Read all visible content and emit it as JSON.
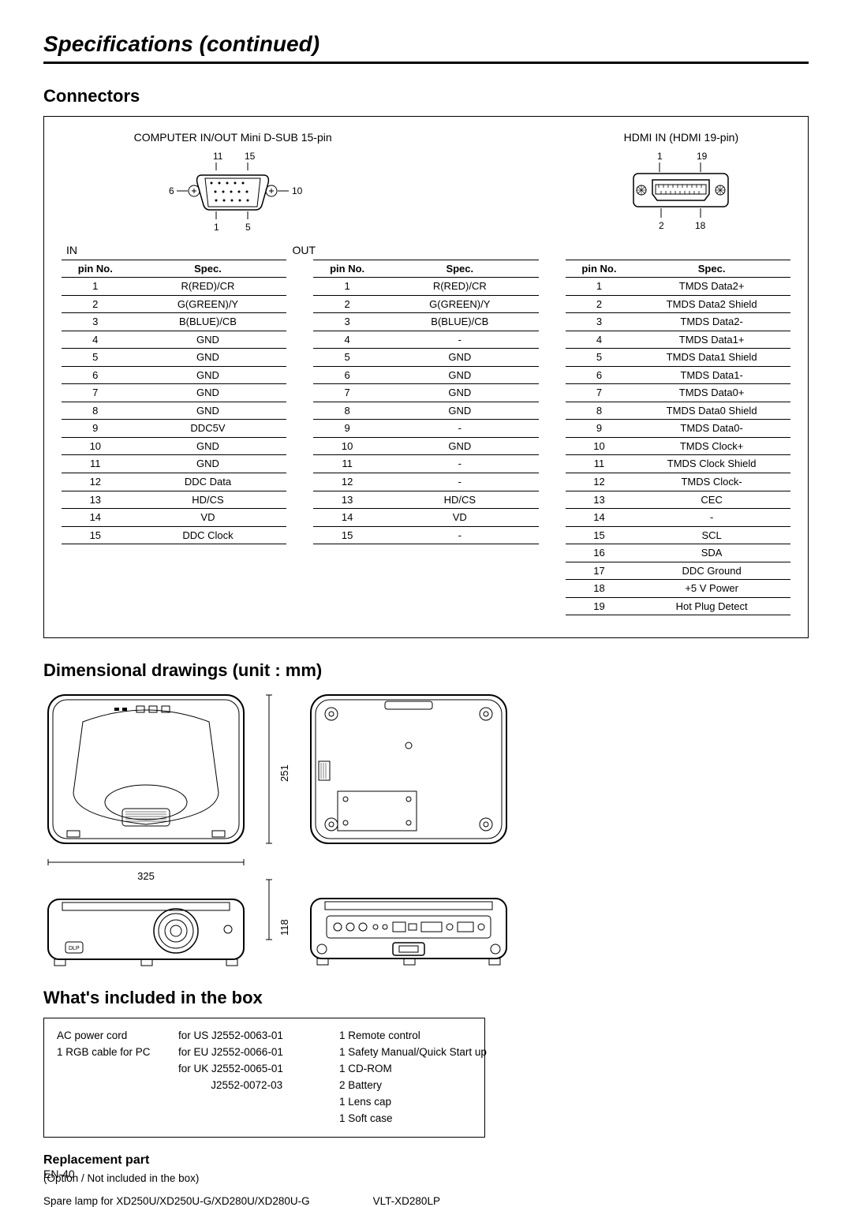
{
  "page_title": "Specifications (continued)",
  "connectors": {
    "title": "Connectors",
    "dsub_label": "COMPUTER IN/OUT Mini D-SUB 15-pin",
    "hdmi_label": "HDMI IN (HDMI 19-pin)",
    "dsub_pins": {
      "p11": "11",
      "p15": "15",
      "p6": "6",
      "p10": "10",
      "p1": "1",
      "p5": "5"
    },
    "hdmi_pins": {
      "p1": "1",
      "p19": "19",
      "p2": "2",
      "p18": "18"
    },
    "in_label": "IN",
    "out_label": "OUT",
    "table_headers": {
      "pin": "pin No.",
      "spec": "Spec."
    },
    "table_in": [
      [
        "1",
        "R(RED)/CR"
      ],
      [
        "2",
        "G(GREEN)/Y"
      ],
      [
        "3",
        "B(BLUE)/CB"
      ],
      [
        "4",
        "GND"
      ],
      [
        "5",
        "GND"
      ],
      [
        "6",
        "GND"
      ],
      [
        "7",
        "GND"
      ],
      [
        "8",
        "GND"
      ],
      [
        "9",
        "DDC5V"
      ],
      [
        "10",
        "GND"
      ],
      [
        "11",
        "GND"
      ],
      [
        "12",
        "DDC Data"
      ],
      [
        "13",
        "HD/CS"
      ],
      [
        "14",
        "VD"
      ],
      [
        "15",
        "DDC Clock"
      ]
    ],
    "table_out": [
      [
        "1",
        "R(RED)/CR"
      ],
      [
        "2",
        "G(GREEN)/Y"
      ],
      [
        "3",
        "B(BLUE)/CB"
      ],
      [
        "4",
        "-"
      ],
      [
        "5",
        "GND"
      ],
      [
        "6",
        "GND"
      ],
      [
        "7",
        "GND"
      ],
      [
        "8",
        "GND"
      ],
      [
        "9",
        "-"
      ],
      [
        "10",
        "GND"
      ],
      [
        "11",
        "-"
      ],
      [
        "12",
        "-"
      ],
      [
        "13",
        "HD/CS"
      ],
      [
        "14",
        "VD"
      ],
      [
        "15",
        "-"
      ]
    ],
    "table_hdmi": [
      [
        "1",
        "TMDS Data2+"
      ],
      [
        "2",
        "TMDS Data2 Shield"
      ],
      [
        "3",
        "TMDS Data2-"
      ],
      [
        "4",
        "TMDS Data1+"
      ],
      [
        "5",
        "TMDS Data1 Shield"
      ],
      [
        "6",
        "TMDS Data1-"
      ],
      [
        "7",
        "TMDS Data0+"
      ],
      [
        "8",
        "TMDS Data0 Shield"
      ],
      [
        "9",
        "TMDS Data0-"
      ],
      [
        "10",
        "TMDS Clock+"
      ],
      [
        "11",
        "TMDS Clock Shield"
      ],
      [
        "12",
        "TMDS Clock-"
      ],
      [
        "13",
        "CEC"
      ],
      [
        "14",
        "-"
      ],
      [
        "15",
        "SCL"
      ],
      [
        "16",
        "SDA"
      ],
      [
        "17",
        "DDC Ground"
      ],
      [
        "18",
        "+5 V Power"
      ],
      [
        "19",
        "Hot Plug Detect"
      ]
    ]
  },
  "dimensions": {
    "title": "Dimensional drawings (unit : mm)",
    "w": "325",
    "d": "251",
    "h": "118"
  },
  "box": {
    "title": "What's included in the box",
    "col1": {
      "l0": "   AC power cord",
      "l1": "",
      "l2": "",
      "l3": "1 RGB cable for PC"
    },
    "col2": {
      "l0": "for US  J2552-0063-01",
      "l1": "for EU  J2552-0066-01",
      "l2": "for UK  J2552-0065-01",
      "l3": "           J2552-0072-03"
    },
    "col3": {
      "l0": "1 Remote control",
      "l1": "1 Safety Manual/Quick Start up",
      "l2": "1 CD-ROM",
      "l3": "2 Battery",
      "l4": "1 Lens cap",
      "l5": "1 Soft case"
    }
  },
  "replacement": {
    "title": "Replacement part",
    "note": "(Option / Not included in the box)",
    "item": "Spare lamp for XD250U/XD250U-G/XD280U/XD280U-G",
    "part": "VLT-XD280LP"
  },
  "footer": "EN-40"
}
